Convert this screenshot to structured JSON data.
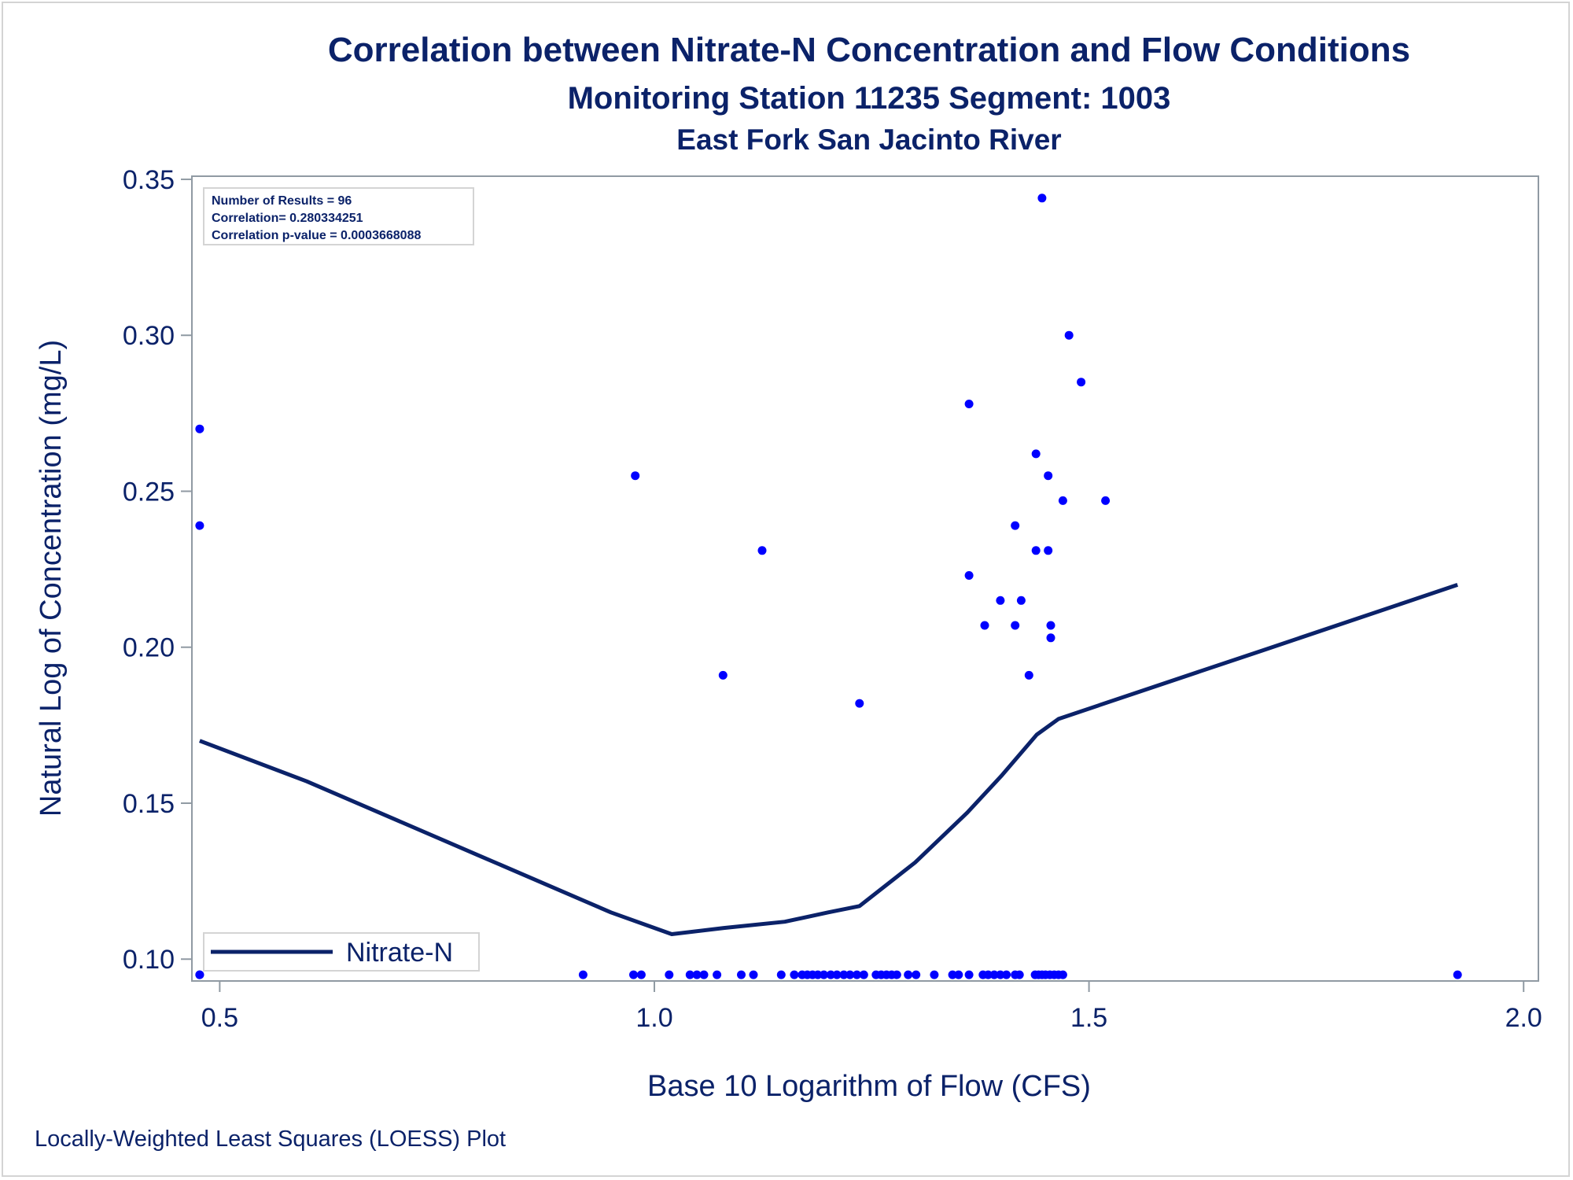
{
  "chart_data": {
    "type": "scatter",
    "title": "Correlation between Nitrate-N Concentration and Flow Conditions",
    "subtitle": "Monitoring Station 11235 Segment: 1003",
    "subtitle2": "East Fork San Jacinto River",
    "xlabel": "Base 10 Logarithm of Flow (CFS)",
    "ylabel": "Natural Log of Concentration (mg/L)",
    "footnote": "Locally-Weighted Least Squares (LOESS) Plot",
    "xlim": [
      0.468,
      2.017
    ],
    "ylim": [
      0.093,
      0.351
    ],
    "xticks": [
      "0.5",
      "1.0",
      "1.5",
      "2.0"
    ],
    "yticks": [
      "0.10",
      "0.15",
      "0.20",
      "0.25",
      "0.30",
      "0.35"
    ],
    "grid": false,
    "legend": {
      "position": "bottom-left",
      "entries": [
        "Nitrate-N"
      ]
    },
    "stats": [
      "Number of Results = 96",
      "Correlation= 0.280334251",
      "Correlation p-value = 0.0003668088"
    ],
    "colors": {
      "points": "#0000ff",
      "line": "#0b2269",
      "axis": "#909aa3",
      "text": "#0b2269"
    },
    "series": [
      {
        "kind": "points",
        "x": [
          0.477,
          0.477,
          0.477,
          0.978,
          1.079,
          1.124,
          1.236,
          1.362,
          1.362,
          1.38,
          1.398,
          1.415,
          1.422,
          1.431,
          1.415,
          1.439,
          1.439,
          1.446,
          1.453,
          1.453,
          1.456,
          1.456,
          1.47,
          1.477,
          1.491,
          1.519,
          0.477,
          0.918,
          0.976,
          0.985,
          1.017,
          1.041,
          1.049,
          1.057,
          1.072,
          1.1,
          1.114,
          1.146,
          1.161,
          1.17,
          1.176,
          1.182,
          1.188,
          1.195,
          1.203,
          1.21,
          1.218,
          1.225,
          1.233,
          1.241,
          1.255,
          1.261,
          1.267,
          1.273,
          1.279,
          1.292,
          1.301,
          1.322,
          1.343,
          1.35,
          1.362,
          1.378,
          1.384,
          1.391,
          1.398,
          1.405,
          1.415,
          1.42,
          1.438,
          1.442,
          1.446,
          1.45,
          1.455,
          1.46,
          1.465,
          1.47,
          1.924
        ],
        "y": [
          0.27,
          0.239,
          0.095,
          0.255,
          0.191,
          0.231,
          0.182,
          0.278,
          0.223,
          0.207,
          0.215,
          0.239,
          0.215,
          0.191,
          0.207,
          0.262,
          0.231,
          0.344,
          0.231,
          0.255,
          0.207,
          0.203,
          0.247,
          0.3,
          0.285,
          0.247,
          0.095,
          0.095,
          0.095,
          0.095,
          0.095,
          0.095,
          0.095,
          0.095,
          0.095,
          0.095,
          0.095,
          0.095,
          0.095,
          0.095,
          0.095,
          0.095,
          0.095,
          0.095,
          0.095,
          0.095,
          0.095,
          0.095,
          0.095,
          0.095,
          0.095,
          0.095,
          0.095,
          0.095,
          0.095,
          0.095,
          0.095,
          0.095,
          0.095,
          0.095,
          0.095,
          0.095,
          0.095,
          0.095,
          0.095,
          0.095,
          0.095,
          0.095,
          0.095,
          0.095,
          0.095,
          0.095,
          0.095,
          0.095,
          0.095,
          0.095,
          0.095
        ]
      },
      {
        "kind": "line",
        "name": "Nitrate-N",
        "x": [
          0.477,
          0.6,
          0.8,
          0.95,
          1.02,
          1.08,
          1.15,
          1.2,
          1.236,
          1.3,
          1.36,
          1.4,
          1.44,
          1.465,
          1.55,
          1.7,
          1.924
        ],
        "y": [
          0.17,
          0.157,
          0.133,
          0.115,
          0.108,
          0.11,
          0.112,
          0.115,
          0.117,
          0.131,
          0.147,
          0.159,
          0.172,
          0.177,
          0.185,
          0.199,
          0.22
        ]
      }
    ]
  }
}
